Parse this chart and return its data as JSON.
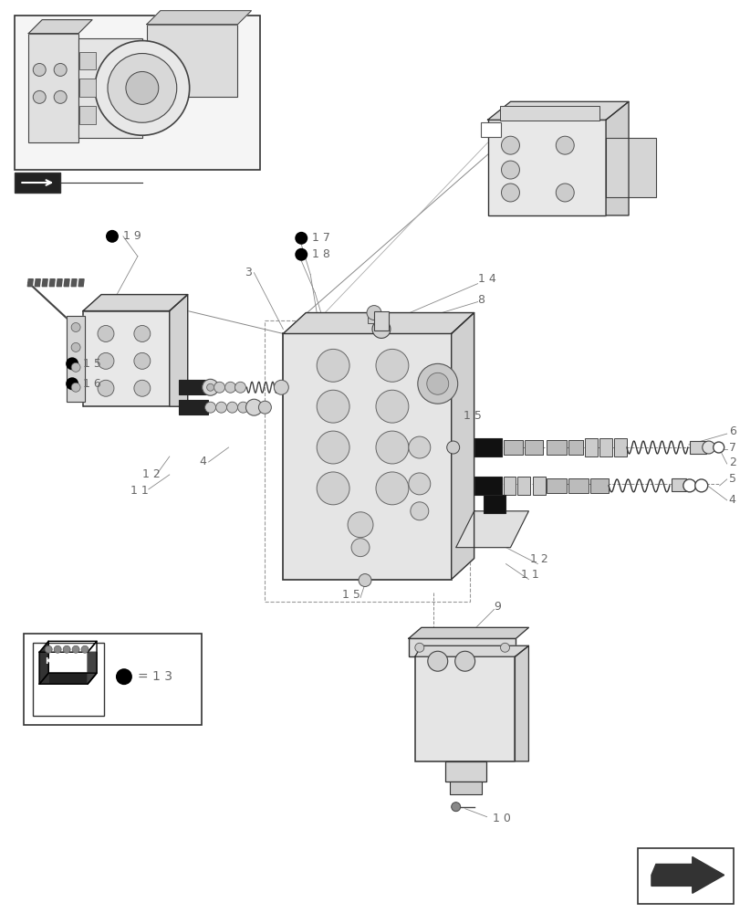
{
  "bg": "#ffffff",
  "fw": 8.12,
  "fh": 10.0,
  "tc": "#666666",
  "lc": "#000000",
  "gc": "#888888",
  "parts_color": "#cccccc",
  "dark": "#333333",
  "mid": "#aaaaaa"
}
